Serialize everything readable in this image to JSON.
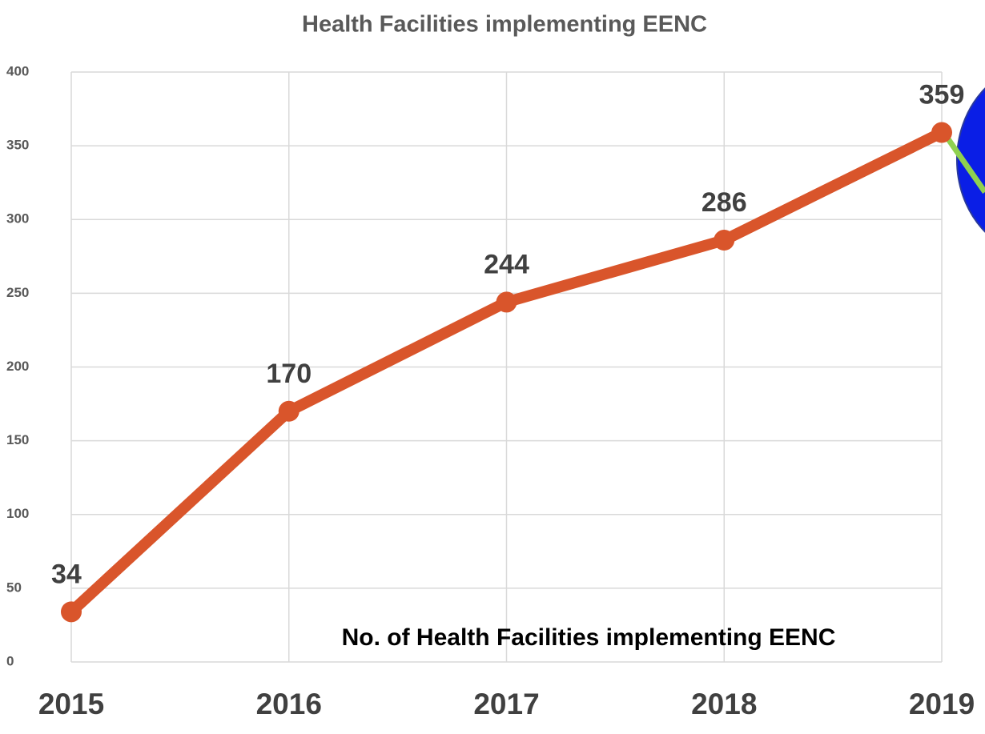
{
  "chart_data": {
    "type": "line",
    "title": "Health Facilities implementing EENC",
    "x": [
      2015,
      2016,
      2017,
      2018,
      2019
    ],
    "xlim": [
      2015,
      2019
    ],
    "xticks": [
      2015,
      2016,
      2017,
      2018,
      2019
    ],
    "series": [
      {
        "name": "No. of Health Facilities implementing EENC",
        "color": "#d9552b",
        "values": [
          34,
          170,
          244,
          286,
          359
        ]
      }
    ],
    "ylim": [
      0,
      400
    ],
    "yticks": [
      0,
      50,
      100,
      150,
      200,
      250,
      300,
      350,
      400
    ],
    "grid": true
  }
}
